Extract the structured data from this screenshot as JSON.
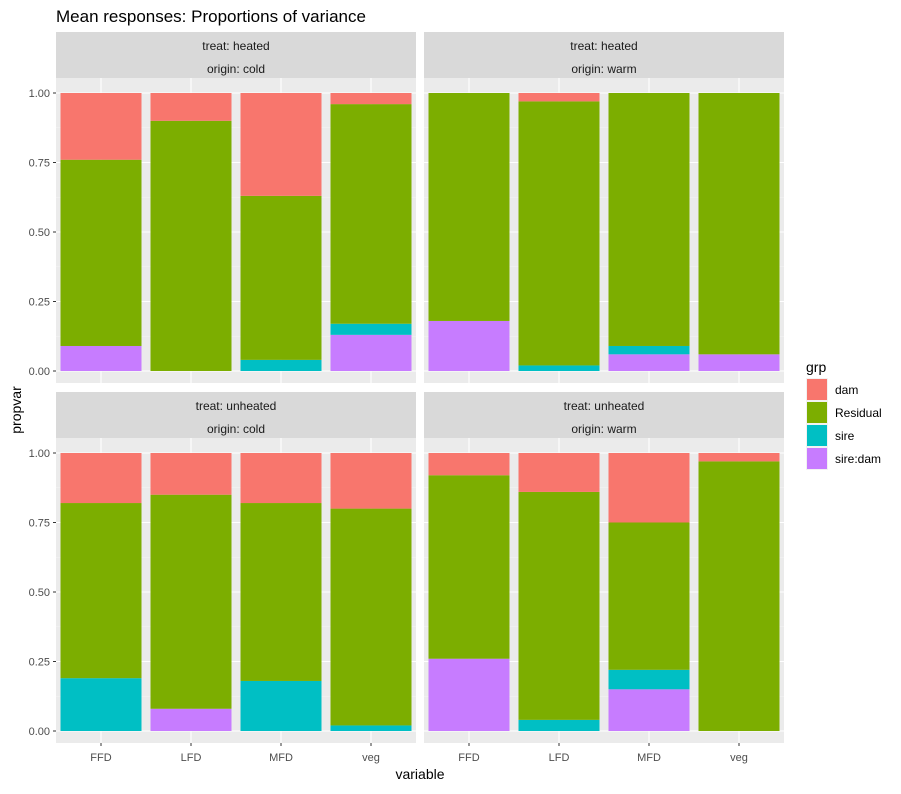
{
  "chart_data": {
    "type": "bar",
    "stacked": true,
    "title": "Mean responses: Proportions of variance",
    "xlabel": "variable",
    "ylabel": "propvar",
    "ylim": [
      0,
      1
    ],
    "yticks": [
      "0.00",
      "0.25",
      "0.50",
      "0.75",
      "1.00"
    ],
    "categories": [
      "FFD",
      "LFD",
      "MFD",
      "veg"
    ],
    "grid": true,
    "legend": {
      "title": "grp",
      "position": "right",
      "items": [
        {
          "name": "dam",
          "color": "#F8766D"
        },
        {
          "name": "Residual",
          "color": "#7CAE00"
        },
        {
          "name": "sire",
          "color": "#00BFC4"
        },
        {
          "name": "sire:dam",
          "color": "#C77CFF"
        }
      ]
    },
    "stack_order_bottom_to_top": [
      "sire:dam",
      "sire",
      "Residual",
      "dam"
    ],
    "panels": [
      {
        "strip": [
          "treat: heated",
          "origin: cold"
        ],
        "series": [
          {
            "name": "sire:dam",
            "values": [
              0.09,
              0.0,
              0.0,
              0.13
            ]
          },
          {
            "name": "sire",
            "values": [
              0.0,
              0.0,
              0.04,
              0.04
            ]
          },
          {
            "name": "Residual",
            "values": [
              0.67,
              0.9,
              0.59,
              0.79
            ]
          },
          {
            "name": "dam",
            "values": [
              0.24,
              0.1,
              0.37,
              0.04
            ]
          }
        ]
      },
      {
        "strip": [
          "treat: heated",
          "origin: warm"
        ],
        "series": [
          {
            "name": "sire:dam",
            "values": [
              0.18,
              0.0,
              0.06,
              0.06
            ]
          },
          {
            "name": "sire",
            "values": [
              0.0,
              0.02,
              0.03,
              0.0
            ]
          },
          {
            "name": "Residual",
            "values": [
              0.82,
              0.95,
              0.91,
              0.94
            ]
          },
          {
            "name": "dam",
            "values": [
              0.0,
              0.03,
              0.0,
              0.0
            ]
          }
        ]
      },
      {
        "strip": [
          "treat: unheated",
          "origin: cold"
        ],
        "series": [
          {
            "name": "sire:dam",
            "values": [
              0.0,
              0.08,
              0.0,
              0.0
            ]
          },
          {
            "name": "sire",
            "values": [
              0.19,
              0.0,
              0.18,
              0.02
            ]
          },
          {
            "name": "Residual",
            "values": [
              0.63,
              0.77,
              0.64,
              0.78
            ]
          },
          {
            "name": "dam",
            "values": [
              0.18,
              0.15,
              0.18,
              0.2
            ]
          }
        ]
      },
      {
        "strip": [
          "treat: unheated",
          "origin: warm"
        ],
        "series": [
          {
            "name": "sire:dam",
            "values": [
              0.26,
              0.0,
              0.15,
              0.0
            ]
          },
          {
            "name": "sire",
            "values": [
              0.0,
              0.04,
              0.07,
              0.0
            ]
          },
          {
            "name": "Residual",
            "values": [
              0.66,
              0.82,
              0.53,
              0.97
            ]
          },
          {
            "name": "dam",
            "values": [
              0.08,
              0.14,
              0.25,
              0.03
            ]
          }
        ]
      }
    ]
  }
}
